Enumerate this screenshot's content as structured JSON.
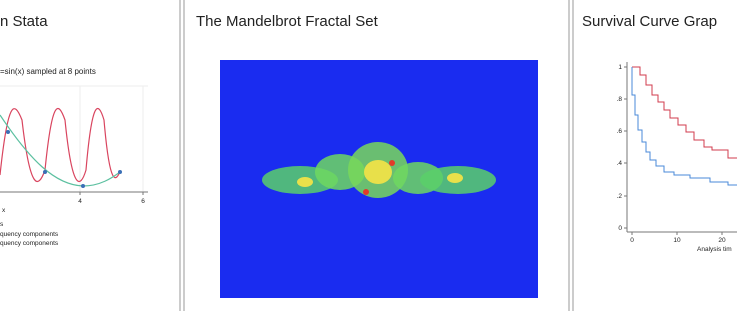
{
  "cards": [
    {
      "title": "n Stata",
      "chart": {
        "subtitle": "=sin(x) sampled at 8 points",
        "x_ticks": [
          "4",
          "6"
        ],
        "x_label": "x",
        "legend": [
          "s",
          "quency components",
          "quency components"
        ]
      }
    },
    {
      "title": "The Mandelbrot Fractal Set"
    },
    {
      "title": "Survival Curve Grap",
      "chart": {
        "y_ticks": [
          "1",
          ".8",
          ".6",
          ".4",
          ".2",
          "0"
        ],
        "x_ticks": [
          "0",
          "10",
          "20"
        ],
        "x_label": "Analysis tim"
      }
    }
  ]
}
